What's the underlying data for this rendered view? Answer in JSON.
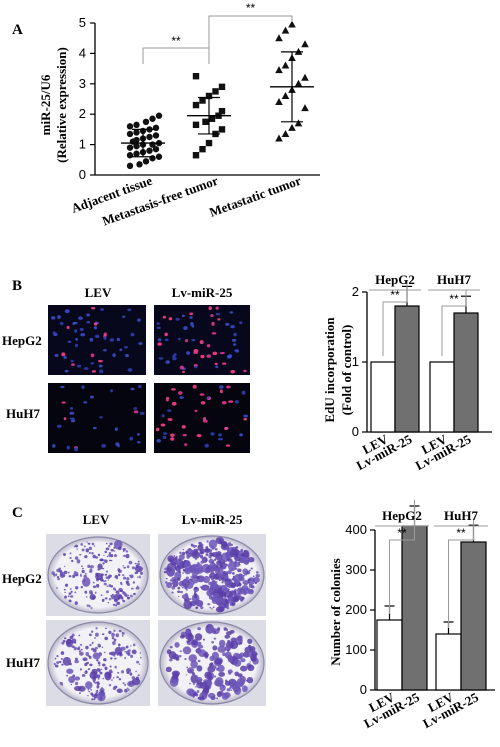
{
  "panels": {
    "a": {
      "letter": "A"
    },
    "b": {
      "letter": "B",
      "col_labels": [
        "LEV",
        "Lv-miR-25"
      ],
      "row_labels": [
        "HepG2",
        "HuH7"
      ]
    },
    "c": {
      "letter": "C",
      "col_labels": [
        "LEV",
        "Lv-miR-25"
      ],
      "row_labels": [
        "HepG2",
        "HuH7"
      ]
    }
  },
  "chart_data": [
    {
      "id": "scatter",
      "type": "scatter",
      "ylabel": "miR-25/U6",
      "ylabel2": "(Relative expression)",
      "ylim": [
        0,
        5
      ],
      "yticks": [
        "0",
        "1",
        "2",
        "3",
        "4",
        "5"
      ],
      "categories": [
        "Adjacent tissue",
        "Metastasis-free tumor",
        "Metastatic tumor"
      ],
      "markers": [
        "circle",
        "square",
        "triangle"
      ],
      "significance": [
        "**",
        "**"
      ],
      "series": [
        {
          "values": [
            0.3,
            0.35,
            0.45,
            0.55,
            0.6,
            0.65,
            0.7,
            0.75,
            0.8,
            0.85,
            0.9,
            0.95,
            1.0,
            1.0,
            1.05,
            1.1,
            1.15,
            1.2,
            1.25,
            1.3,
            1.35,
            1.4,
            1.45,
            1.5,
            1.55,
            1.6,
            1.65,
            1.75,
            1.85,
            1.95
          ],
          "mean": 1.05,
          "sd": 0.45
        },
        {
          "values": [
            0.65,
            0.85,
            1.05,
            1.35,
            1.5,
            1.65,
            1.75,
            1.85,
            1.95,
            2.1,
            2.3,
            2.45,
            2.6,
            2.75,
            2.9,
            3.25
          ],
          "mean": 1.95,
          "sd": 0.6
        },
        {
          "values": [
            1.2,
            1.35,
            1.55,
            1.7,
            2.2,
            2.4,
            2.6,
            2.8,
            3.0,
            3.2,
            3.45,
            3.6,
            3.85,
            4.05,
            4.3,
            4.5,
            4.75,
            4.95
          ],
          "mean": 2.9,
          "sd": 1.15
        }
      ]
    },
    {
      "id": "edu",
      "type": "bar",
      "ylabel": "EdU incorporation",
      "ylabel2": "(Fold of control)",
      "ylim": [
        0,
        2
      ],
      "yticks": [
        "0",
        "1",
        "2"
      ],
      "groups": [
        "HepG2",
        "HuH7"
      ],
      "categories": [
        "LEV",
        "Lv-miR-25"
      ],
      "bar_colors": [
        "#ffffff",
        "#707070"
      ],
      "significance": [
        "**",
        "**"
      ],
      "values": [
        [
          1.0,
          1.8
        ],
        [
          1.0,
          1.7
        ]
      ],
      "errors": [
        [
          0,
          0.28
        ],
        [
          0,
          0.24
        ]
      ]
    },
    {
      "id": "colony",
      "type": "bar",
      "ylabel": "Number of colonies",
      "ylim": [
        0,
        400
      ],
      "yticks": [
        "0",
        "100",
        "200",
        "300",
        "400"
      ],
      "groups": [
        "HepG2",
        "HuH7"
      ],
      "categories": [
        "LEV",
        "Lv-miR-25"
      ],
      "bar_colors": [
        "#ffffff",
        "#707070"
      ],
      "significance": [
        "**",
        "**"
      ],
      "values": [
        [
          175,
          410
        ],
        [
          140,
          370
        ]
      ],
      "errors": [
        [
          35,
          50
        ],
        [
          30,
          42
        ]
      ]
    }
  ]
}
